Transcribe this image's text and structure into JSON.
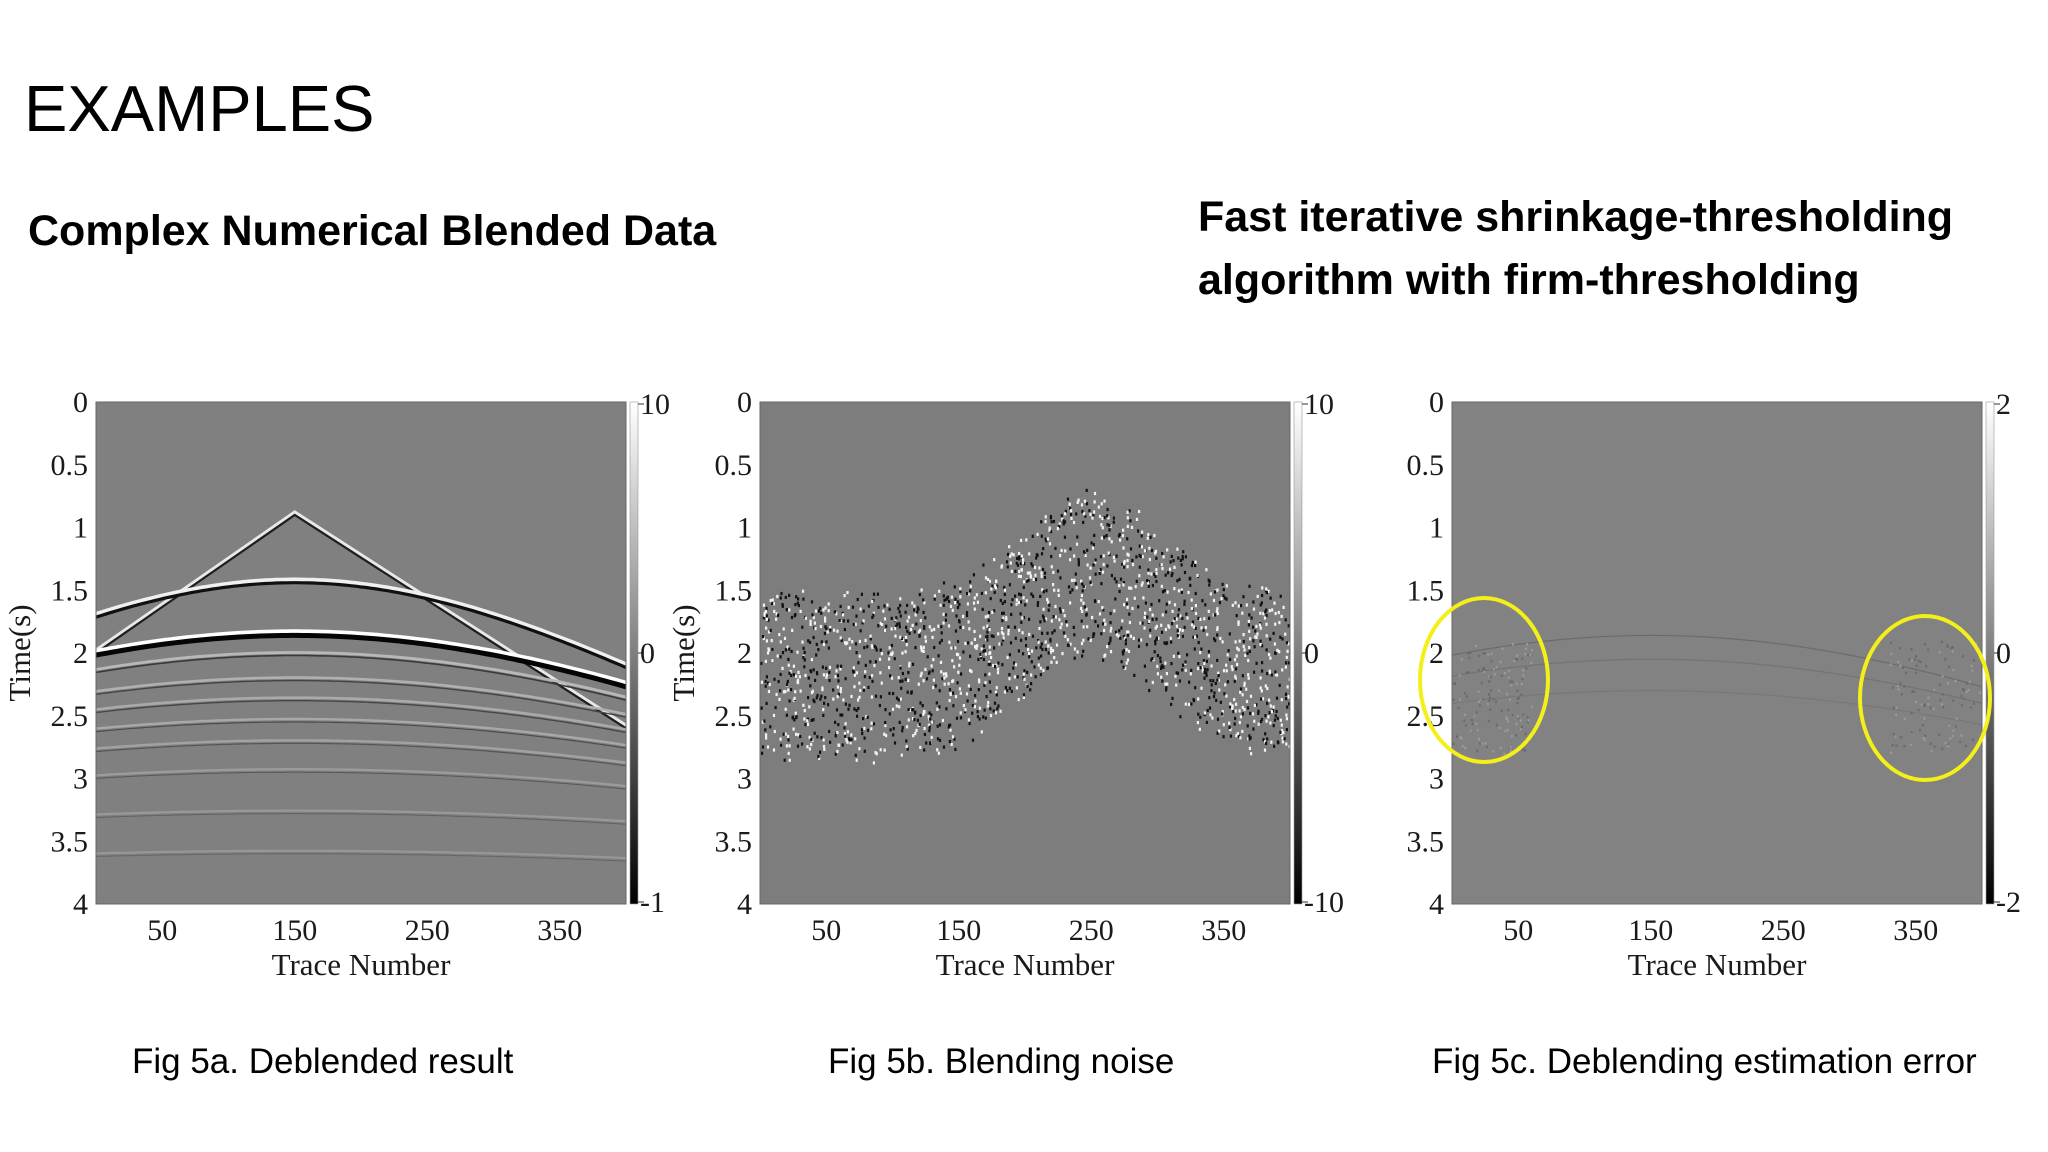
{
  "slide": {
    "title": "EXAMPLES",
    "subtitle_left": "Complex Numerical Blended Data",
    "subtitle_right_line1": "Fast iterative shrinkage-thresholding",
    "subtitle_right_line2": "algorithm with firm-thresholding"
  },
  "chart_data": [
    {
      "type": "heatmap",
      "caption": "Fig 5a. Deblended result",
      "xlabel": "Trace Number",
      "ylabel": "Time(s)",
      "xticks": [
        "50",
        "150",
        "250",
        "350"
      ],
      "yticks": [
        "0",
        "0.5",
        "1",
        "1.5",
        "2",
        "2.5",
        "3",
        "3.5",
        "4"
      ],
      "xlim": [
        0,
        400
      ],
      "ylim": [
        0,
        4
      ],
      "colorbar_ticks": [
        "10",
        "0",
        "-1"
      ],
      "colormap": "gray"
    },
    {
      "type": "heatmap",
      "caption": "Fig 5b. Blending noise",
      "xlabel": "Trace Number",
      "ylabel": "Time(s)",
      "xticks": [
        "50",
        "150",
        "250",
        "350"
      ],
      "yticks": [
        "0",
        "0.5",
        "1",
        "1.5",
        "2",
        "2.5",
        "3",
        "3.5",
        "4"
      ],
      "xlim": [
        0,
        400
      ],
      "ylim": [
        0,
        4
      ],
      "colorbar_ticks": [
        "10",
        "0",
        "-10"
      ],
      "colormap": "gray"
    },
    {
      "type": "heatmap",
      "caption": "Fig 5c. Deblending estimation error",
      "xlabel": "Trace Number",
      "ylabel": "",
      "xticks": [
        "50",
        "150",
        "250",
        "350"
      ],
      "yticks": [
        "0",
        "0.5",
        "1",
        "1.5",
        "2",
        "2.5",
        "3",
        "3.5",
        "4"
      ],
      "xlim": [
        0,
        400
      ],
      "ylim": [
        0,
        4
      ],
      "colorbar_ticks": [
        "2",
        "0",
        "-2"
      ],
      "colormap": "gray",
      "highlight_color": "#f2ef1a"
    }
  ]
}
